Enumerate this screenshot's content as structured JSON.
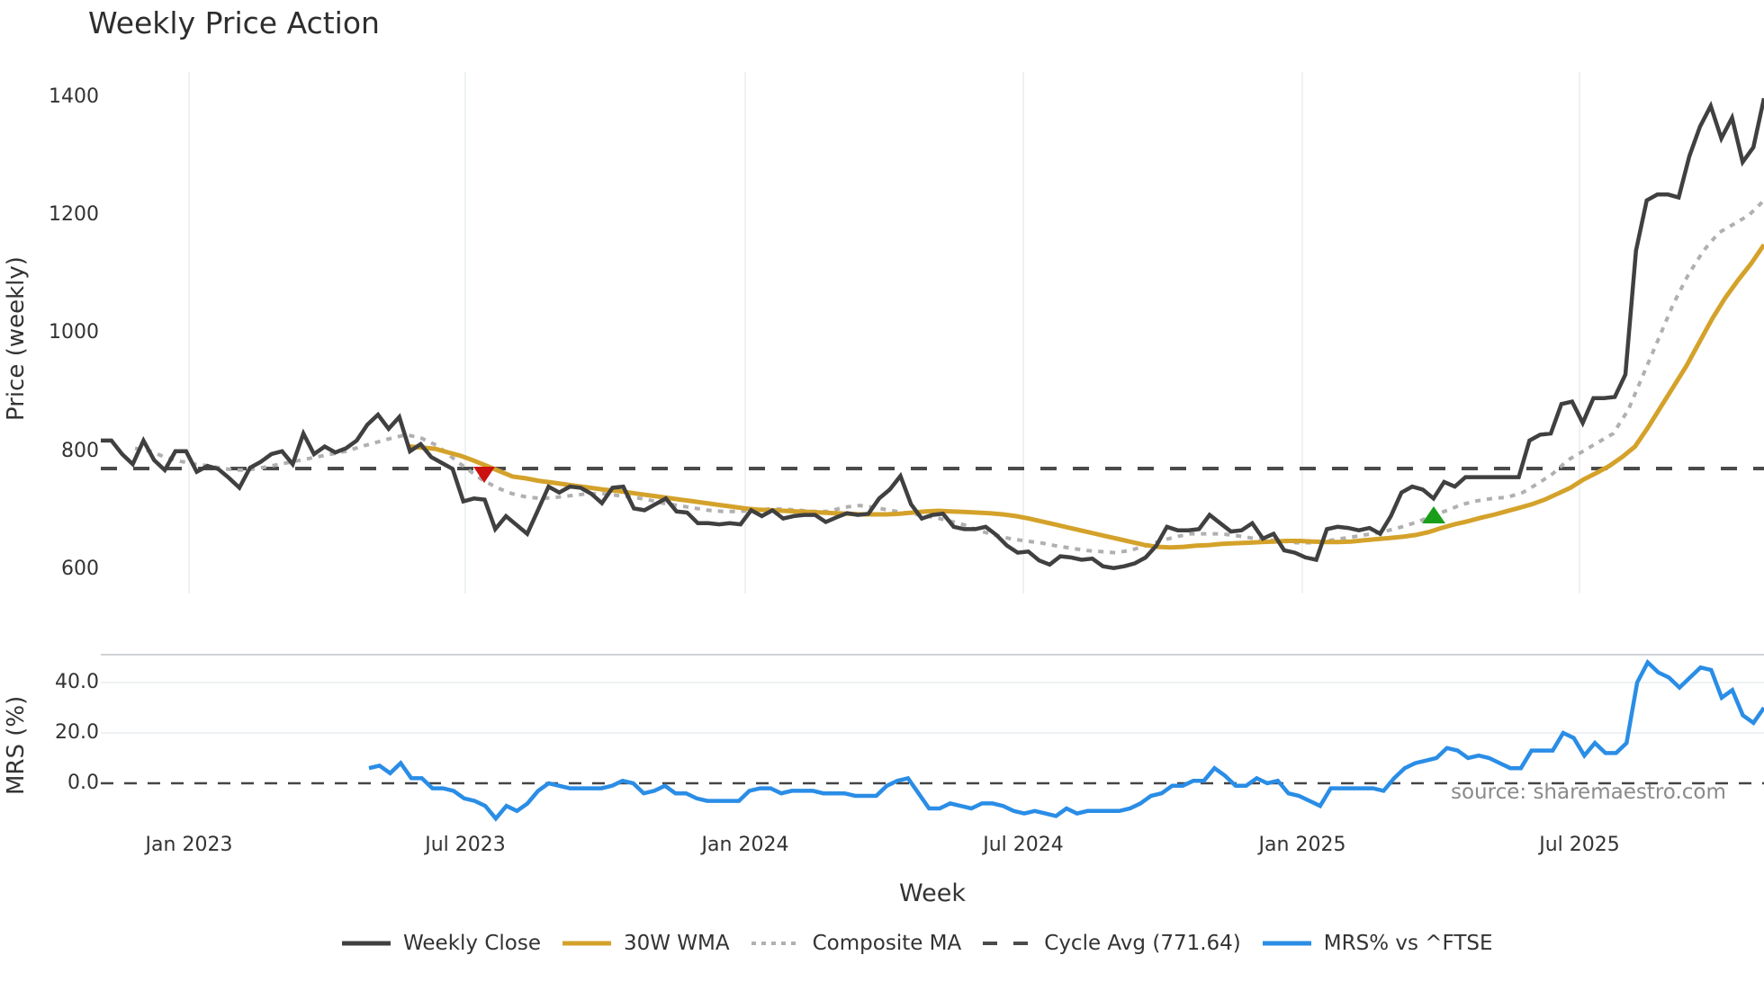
{
  "title": "Weekly Price Action",
  "price_panel": {
    "ylabel": "Price (weekly)",
    "yticks": [
      "1400",
      "1200",
      "1000",
      "800",
      "600"
    ]
  },
  "mrs_panel": {
    "ylabel": "MRS (%)",
    "yticks": [
      "40.0",
      "20.0",
      "0.0"
    ]
  },
  "xaxis": {
    "label": "Week",
    "ticks": [
      "Jan 2023",
      "Jul 2023",
      "Jan 2024",
      "Jul 2024",
      "Jan 2025",
      "Jul 2025"
    ]
  },
  "source": "source: sharemaestro.com",
  "legend": [
    {
      "label": "Weekly Close",
      "color": "#404040",
      "style": "solid"
    },
    {
      "label": "30W WMA",
      "color": "#d4a22a",
      "style": "solid"
    },
    {
      "label": "Composite MA",
      "color": "#b0b0b0",
      "style": "dotted"
    },
    {
      "label": "Cycle Avg (771.64)",
      "color": "#4a4a4a",
      "style": "dashed"
    },
    {
      "label": "MRS% vs ^FTSE",
      "color": "#2a8de6",
      "style": "solid"
    }
  ],
  "colors": {
    "close": "#404040",
    "wma": "#d4a22a",
    "composite": "#b0b0b0",
    "cycle": "#4a4a4a",
    "mrs": "#2a8de6",
    "sell_marker": "#cc1111",
    "buy_marker": "#1a9e1a"
  },
  "chart_data": [
    {
      "type": "line",
      "title": "Weekly Price Action",
      "xlabel": "Week",
      "ylabel": "Price (weekly)",
      "ylim": [
        560,
        1420
      ],
      "x_ticks": [
        "Jan 2023",
        "Jul 2023",
        "Jan 2024",
        "Jul 2024",
        "Jan 2025",
        "Jul 2025"
      ],
      "x_range": [
        "Nov 2022",
        "Dec 2025"
      ],
      "grid": "vertical",
      "legend_position": "bottom",
      "series": [
        {
          "name": "Weekly Close",
          "values": [
            818,
            818,
            795,
            778,
            818,
            785,
            768,
            800,
            800,
            765,
            775,
            770,
            755,
            738,
            772,
            782,
            795,
            800,
            778,
            830,
            795,
            808,
            798,
            805,
            818,
            845,
            862,
            838,
            858,
            800,
            812,
            790,
            780,
            770,
            715,
            720,
            718,
            668,
            690,
            675,
            660,
            700,
            740,
            730,
            740,
            738,
            728,
            712,
            738,
            740,
            703,
            700,
            710,
            720,
            698,
            696,
            678,
            678,
            676,
            678,
            676,
            700,
            690,
            700,
            686,
            690,
            692,
            692,
            680,
            688,
            695,
            692,
            694,
            720,
            735,
            758,
            710,
            686,
            692,
            694,
            672,
            668,
            668,
            672,
            658,
            640,
            628,
            630,
            615,
            608,
            622,
            620,
            616,
            618,
            605,
            602,
            605,
            610,
            620,
            640,
            672,
            666,
            666,
            668,
            692,
            678,
            664,
            666,
            678,
            652,
            660,
            632,
            628,
            620,
            616,
            668,
            672,
            670,
            666,
            670,
            660,
            690,
            730,
            740,
            735,
            720,
            748,
            740,
            756,
            756,
            756,
            756,
            756,
            756,
            818,
            828,
            830,
            880,
            884,
            848,
            890,
            890,
            892,
            930,
            1140,
            1225,
            1235,
            1235,
            1230,
            1300,
            1350,
            1385,
            1330,
            1365,
            1290,
            1315,
            1398
          ]
        },
        {
          "name": "30W WMA",
          "values": [
            808,
            806,
            804,
            798,
            792,
            784,
            775,
            766,
            757,
            754,
            750,
            747,
            744,
            741,
            738,
            735,
            733,
            730,
            727,
            724,
            721,
            718,
            715,
            712,
            709,
            706,
            703,
            701,
            700,
            699,
            698,
            697,
            696,
            695,
            694,
            693,
            693,
            693,
            694,
            696,
            698,
            699,
            698,
            697,
            696,
            695,
            693,
            690,
            686,
            681,
            676,
            671,
            666,
            661,
            656,
            651,
            646,
            641,
            638,
            637,
            638,
            640,
            641,
            643,
            644,
            645,
            646,
            647,
            648,
            648,
            647,
            646,
            646,
            647,
            649,
            651,
            653,
            655,
            658,
            663,
            670,
            676,
            681,
            687,
            692,
            698,
            704,
            710,
            718,
            728,
            738,
            752,
            763,
            775,
            790,
            808,
            840,
            875,
            910,
            945,
            985,
            1025,
            1060,
            1090,
            1118,
            1150
          ]
        },
        {
          "name": "Composite MA",
          "values": [
            805,
            800,
            790,
            783,
            778,
            775,
            770,
            768,
            770,
            775,
            780,
            785,
            790,
            795,
            800,
            808,
            815,
            822,
            828,
            822,
            810,
            790,
            770,
            752,
            738,
            728,
            722,
            720,
            722,
            725,
            728,
            728,
            725,
            722,
            718,
            712,
            708,
            704,
            700,
            698,
            698,
            700,
            702,
            702,
            700,
            698,
            698,
            705,
            708,
            705,
            700,
            696,
            692,
            688,
            682,
            675,
            665,
            658,
            652,
            648,
            645,
            640,
            636,
            632,
            630,
            628,
            632,
            640,
            648,
            655,
            660,
            660,
            660,
            657,
            653,
            650,
            648,
            645,
            645,
            648,
            652,
            656,
            660,
            665,
            672,
            680,
            690,
            700,
            710,
            716,
            720,
            722,
            730,
            745,
            762,
            785,
            800,
            815,
            830,
            870,
            930,
            990,
            1050,
            1100,
            1140,
            1170,
            1185,
            1200,
            1225
          ]
        },
        {
          "name": "Cycle Avg (771.64)",
          "values": [
            771.64
          ]
        }
      ],
      "markers": [
        {
          "type": "sell",
          "shape": "triangle-down",
          "date": "Jul 2023",
          "value": 762
        },
        {
          "type": "buy",
          "shape": "triangle-up",
          "date": "Apr 2025",
          "value": 690
        }
      ]
    },
    {
      "type": "line",
      "xlabel": "Week",
      "ylabel": "MRS (%)",
      "ylim": [
        -16,
        52
      ],
      "y_ticks": [
        0,
        20,
        40
      ],
      "reference_line": 0,
      "series": [
        {
          "name": "MRS% vs ^FTSE",
          "values": [
            6,
            7,
            4,
            8,
            2,
            2,
            -2,
            -2,
            -3,
            -6,
            -7,
            -9,
            -14,
            -9,
            -11,
            -8,
            -3,
            0,
            -1,
            -2,
            -2,
            -2,
            -2,
            -1,
            1,
            0,
            -4,
            -3,
            -1,
            -4,
            -4,
            -6,
            -7,
            -7,
            -7,
            -7,
            -3,
            -2,
            -2,
            -4,
            -3,
            -3,
            -3,
            -4,
            -4,
            -4,
            -5,
            -5,
            -5,
            -1,
            1,
            2,
            -4,
            -10,
            -10,
            -8,
            -9,
            -10,
            -8,
            -8,
            -9,
            -11,
            -12,
            -11,
            -12,
            -13,
            -10,
            -12,
            -11,
            -11,
            -11,
            -11,
            -10,
            -8,
            -5,
            -4,
            -1,
            -1,
            1,
            1,
            6,
            3,
            -1,
            -1,
            2,
            0,
            1,
            -4,
            -5,
            -7,
            -9,
            -2,
            -2,
            -2,
            -2,
            -2,
            -3,
            2,
            6,
            8,
            9,
            10,
            14,
            13,
            10,
            11,
            10,
            8,
            6,
            6,
            13,
            13,
            13,
            20,
            18,
            11,
            16,
            12,
            12,
            16,
            40,
            48,
            44,
            42,
            38,
            42,
            46,
            45,
            34,
            37,
            27,
            24,
            30
          ]
        }
      ]
    }
  ]
}
